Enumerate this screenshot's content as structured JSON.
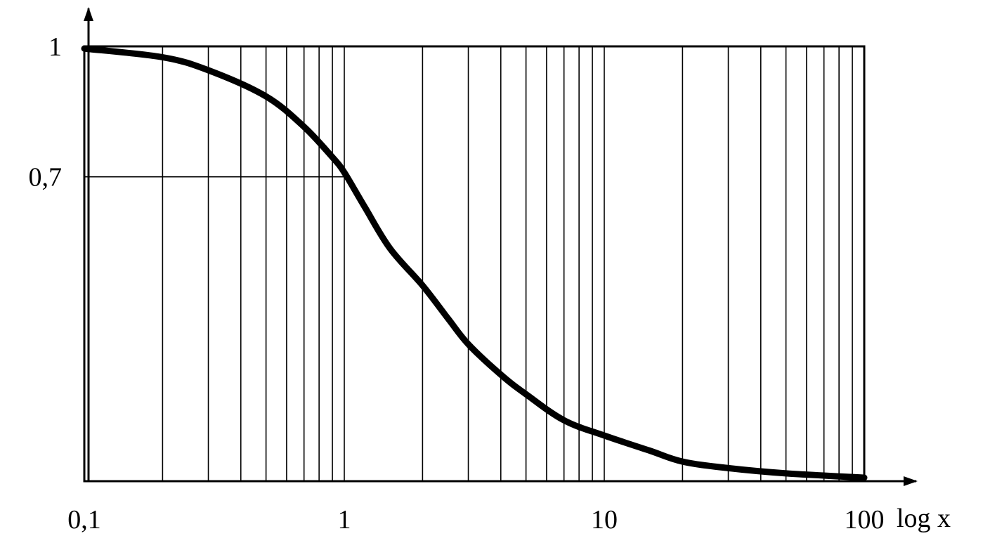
{
  "chart_data": {
    "type": "line",
    "x_scale": "log",
    "xlim": [
      0.1,
      100
    ],
    "ylim": [
      0,
      1
    ],
    "xlabel": "log x",
    "ylabel": "",
    "x_ticks": [
      {
        "value": 0.1,
        "label": "0,1"
      },
      {
        "value": 1,
        "label": "1"
      },
      {
        "value": 10,
        "label": "10"
      },
      {
        "value": 100,
        "label": "100"
      }
    ],
    "y_ticks": [
      {
        "value": 1,
        "label": "1"
      },
      {
        "value": 0.7,
        "label": "0,7"
      }
    ],
    "reference_line": {
      "y": 0.7,
      "x_end": 1
    },
    "grid": {
      "x_minor_log": true,
      "y": false
    },
    "series": [
      {
        "values": [
          {
            "x": 0.1,
            "y": 0.995
          },
          {
            "x": 0.2,
            "y": 0.975
          },
          {
            "x": 0.3,
            "y": 0.945
          },
          {
            "x": 0.5,
            "y": 0.885
          },
          {
            "x": 0.7,
            "y": 0.815
          },
          {
            "x": 0.9,
            "y": 0.745
          },
          {
            "x": 1.0,
            "y": 0.71
          },
          {
            "x": 1.2,
            "y": 0.63
          },
          {
            "x": 1.5,
            "y": 0.535
          },
          {
            "x": 2.0,
            "y": 0.45
          },
          {
            "x": 2.5,
            "y": 0.375
          },
          {
            "x": 3.0,
            "y": 0.315
          },
          {
            "x": 4.0,
            "y": 0.245
          },
          {
            "x": 5.0,
            "y": 0.2
          },
          {
            "x": 7.0,
            "y": 0.14
          },
          {
            "x": 10.0,
            "y": 0.105
          },
          {
            "x": 15.0,
            "y": 0.07
          },
          {
            "x": 20.0,
            "y": 0.045
          },
          {
            "x": 30.0,
            "y": 0.03
          },
          {
            "x": 50.0,
            "y": 0.018
          },
          {
            "x": 100.0,
            "y": 0.008
          }
        ]
      }
    ]
  }
}
